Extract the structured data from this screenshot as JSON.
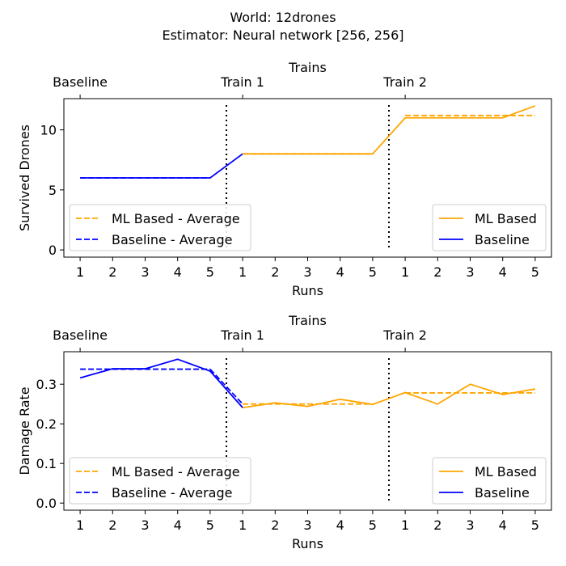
{
  "figure": {
    "title_line1": "World: 12drones",
    "title_line2": "Estimator: Neural network [256, 256]"
  },
  "colors": {
    "ml": "#ffa500",
    "baseline": "#0000ff"
  },
  "chart_data": [
    {
      "type": "line",
      "ylabel": "Survived Drones",
      "xlabel": "Runs",
      "top_axis_label": "Trains",
      "sections": [
        "Baseline",
        "Train 1",
        "Train 2"
      ],
      "categories": [
        "1",
        "2",
        "3",
        "4",
        "5",
        "1",
        "2",
        "3",
        "4",
        "5",
        "1",
        "2",
        "3",
        "4",
        "5"
      ],
      "ylim": [
        -0.6,
        12.6
      ],
      "yticks": [
        0,
        5,
        10
      ],
      "series": [
        {
          "name": "ML Based",
          "x": [
            5,
            6,
            7,
            8,
            9,
            10,
            11,
            12,
            13,
            14
          ],
          "values": [
            8,
            8,
            8,
            8,
            8,
            11,
            11,
            11,
            11,
            12
          ]
        },
        {
          "name": "Baseline",
          "x": [
            0,
            1,
            2,
            3,
            4,
            5
          ],
          "values": [
            6,
            6,
            6,
            6,
            6,
            8
          ]
        },
        {
          "name": "ML Based - Average",
          "segments": [
            {
              "x": [
                5,
                9
              ],
              "values": [
                8,
                8
              ]
            },
            {
              "x": [
                10,
                14
              ],
              "values": [
                11.2,
                11.2
              ]
            }
          ]
        },
        {
          "name": "Baseline - Average",
          "segments": [
            {
              "x": [
                0,
                4
              ],
              "values": [
                6,
                6
              ]
            }
          ]
        }
      ],
      "dividers": [
        4.5,
        9.5
      ],
      "legend_left": [
        "ML Based - Average",
        "Baseline - Average"
      ],
      "legend_right": [
        "ML Based",
        "Baseline"
      ],
      "legend_placement": "lower-left and lower-right",
      "grid": false
    },
    {
      "type": "line",
      "ylabel": "Damage Rate",
      "xlabel": "Runs",
      "top_axis_label": "Trains",
      "sections": [
        "Baseline",
        "Train 1",
        "Train 2"
      ],
      "categories": [
        "1",
        "2",
        "3",
        "4",
        "5",
        "1",
        "2",
        "3",
        "4",
        "5",
        "1",
        "2",
        "3",
        "4",
        "5"
      ],
      "ylim": [
        -0.018,
        0.382
      ],
      "yticks": [
        "0.0",
        "0.1",
        "0.2",
        "0.3"
      ],
      "series": [
        {
          "name": "ML Based",
          "x": [
            5,
            6,
            7,
            8,
            9,
            10,
            11,
            12,
            13,
            14
          ],
          "values": [
            0.241,
            0.253,
            0.244,
            0.262,
            0.249,
            0.279,
            0.25,
            0.3,
            0.274,
            0.288
          ]
        },
        {
          "name": "Baseline",
          "x": [
            0,
            1,
            2,
            3,
            4,
            5
          ],
          "values": [
            0.316,
            0.339,
            0.339,
            0.363,
            0.333,
            0.241
          ]
        },
        {
          "name": "ML Based - Average",
          "segments": [
            {
              "x": [
                5,
                9
              ],
              "values": [
                0.25,
                0.25
              ]
            },
            {
              "x": [
                10,
                14
              ],
              "values": [
                0.278,
                0.278
              ]
            }
          ]
        },
        {
          "name": "Baseline - Average",
          "segments": [
            {
              "x": [
                0,
                4
              ],
              "values": [
                0.338,
                0.338
              ]
            },
            {
              "x": [
                4,
                5
              ],
              "values": [
                0.338,
                0.25
              ]
            }
          ]
        }
      ],
      "dividers": [
        4.5,
        9.5
      ],
      "legend_left": [
        "ML Based - Average",
        "Baseline - Average"
      ],
      "legend_right": [
        "ML Based",
        "Baseline"
      ],
      "legend_placement": "lower-left and lower-right",
      "grid": false
    }
  ]
}
